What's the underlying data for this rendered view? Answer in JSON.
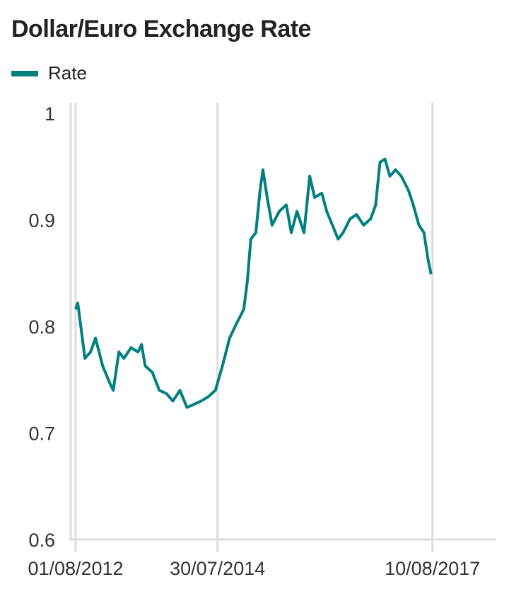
{
  "chart_data": {
    "type": "line",
    "title": "Dollar/Euro Exchange Rate",
    "xlabel": "",
    "ylabel": "",
    "legend": {
      "position": "top-left",
      "entries": [
        "Rate"
      ]
    },
    "grid": {
      "x": true,
      "y": false
    },
    "ylim": [
      0.6,
      1.0
    ],
    "xlim": [
      2012.51,
      2018.51
    ],
    "y_ticks": [
      {
        "value": 1.0,
        "label": "1"
      },
      {
        "value": 0.9,
        "label": "0.9"
      },
      {
        "value": 0.8,
        "label": "0.8"
      },
      {
        "value": 0.7,
        "label": "0.7"
      },
      {
        "value": 0.6,
        "label": "0.6"
      }
    ],
    "x_ticks": [
      {
        "value": 2012.58,
        "label": "01/08/2012"
      },
      {
        "value": 2014.58,
        "label": "30/07/2014"
      },
      {
        "value": 2017.61,
        "label": "10/08/2017"
      }
    ],
    "series": [
      {
        "name": "Rate",
        "color": "#008080",
        "x": [
          2012.58,
          2012.61,
          2012.66,
          2012.71,
          2012.79,
          2012.86,
          2012.96,
          2013.06,
          2013.11,
          2013.19,
          2013.26,
          2013.36,
          2013.46,
          2013.51,
          2013.56,
          2013.66,
          2013.76,
          2013.86,
          2013.95,
          2014.05,
          2014.15,
          2014.25,
          2014.35,
          2014.45,
          2014.55,
          2014.65,
          2014.75,
          2014.85,
          2014.95,
          2015.0,
          2015.05,
          2015.12,
          2015.18,
          2015.22,
          2015.28,
          2015.35,
          2015.45,
          2015.55,
          2015.62,
          2015.7,
          2015.8,
          2015.88,
          2015.95,
          2016.05,
          2016.12,
          2016.2,
          2016.28,
          2016.35,
          2016.45,
          2016.54,
          2016.64,
          2016.74,
          2016.81,
          2016.87,
          2016.94,
          2017.01,
          2017.09,
          2017.17,
          2017.27,
          2017.34,
          2017.42,
          2017.49,
          2017.55,
          2017.59
        ],
        "y": [
          0.816,
          0.822,
          0.796,
          0.77,
          0.776,
          0.789,
          0.763,
          0.747,
          0.74,
          0.776,
          0.77,
          0.78,
          0.776,
          0.783,
          0.763,
          0.757,
          0.74,
          0.737,
          0.73,
          0.74,
          0.724,
          0.727,
          0.73,
          0.734,
          0.74,
          0.763,
          0.789,
          0.803,
          0.816,
          0.842,
          0.882,
          0.888,
          0.928,
          0.947,
          0.921,
          0.895,
          0.908,
          0.914,
          0.888,
          0.908,
          0.888,
          0.941,
          0.921,
          0.925,
          0.908,
          0.895,
          0.882,
          0.888,
          0.901,
          0.905,
          0.895,
          0.901,
          0.914,
          0.954,
          0.957,
          0.941,
          0.947,
          0.941,
          0.928,
          0.914,
          0.895,
          0.888,
          0.862,
          0.849
        ]
      }
    ]
  }
}
